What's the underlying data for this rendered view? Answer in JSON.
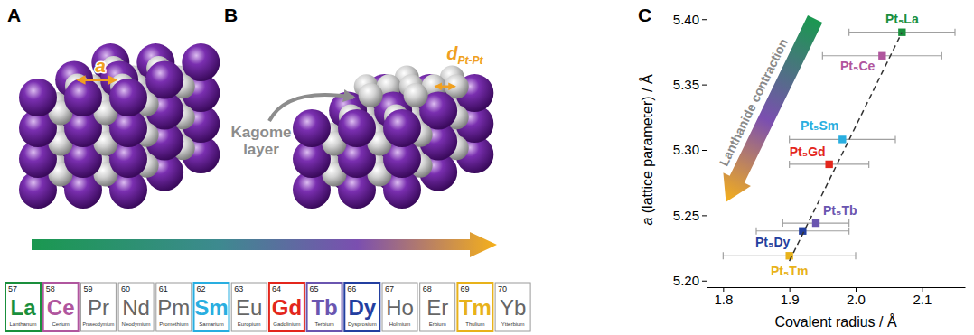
{
  "chart_data": {
    "type": "scatter",
    "x_label": "Covalent radius / Å",
    "y_label": "a (lattice parameter) / Å",
    "annotation": "Lanthanide contraction",
    "xlim": [
      1.775,
      2.165
    ],
    "xticks": [
      1.8,
      1.9,
      {
        "value": 2.0,
        "label": "2.0"
      },
      2.1
    ],
    "ylim": [
      5.195,
      5.405
    ],
    "yticks": [
      {
        "value": 5.2,
        "label": "5.20"
      },
      5.25,
      {
        "value": 5.3,
        "label": "5.30"
      },
      5.35,
      {
        "value": 5.4,
        "label": "5.40"
      }
    ],
    "grid": false,
    "series": [
      {
        "type": "scatter",
        "marker": "square",
        "labels": [
          "Pt₅La",
          "Pt₅Ce",
          "Pt₅Sm",
          "Pt₅Gd",
          "Pt₅Tb",
          "Pt₅Dy",
          "Pt₅Tm"
        ],
        "x": [
          2.07,
          2.04,
          1.98,
          1.96,
          1.94,
          1.92,
          1.9
        ],
        "values": [
          5.39,
          5.372,
          5.308,
          5.289,
          5.244,
          5.238,
          5.219
        ],
        "x_errors": [
          0.08,
          0.09,
          0.08,
          0.06,
          0.05,
          0.07,
          0.1
        ],
        "colors": [
          "#1a8f3c",
          "#b0569e",
          "#29aee0",
          "#e3261c",
          "#6a55b0",
          "#233fa0",
          "#e8b21a"
        ]
      },
      {
        "type": "line",
        "line_style": "dashed",
        "color": "#333333",
        "x": [
          1.9,
          2.07
        ],
        "values": [
          5.215,
          5.39
        ]
      }
    ]
  },
  "figure": {
    "panels": [
      "A",
      "B",
      "C"
    ],
    "lattice_label": "a",
    "distance_label": {
      "symbol": "d",
      "subscript": "Pt-Pt"
    },
    "kagome_label": "Kagome layer",
    "elements": [
      {
        "number": 57,
        "symbol": "La",
        "name": "Lanthanum",
        "color": "#1a8f3c"
      },
      {
        "number": 58,
        "symbol": "Ce",
        "name": "Cerium",
        "color": "#b0569e"
      },
      {
        "number": 59,
        "symbol": "Pr",
        "name": "Praseodymium"
      },
      {
        "number": 60,
        "symbol": "Nd",
        "name": "Neodymium"
      },
      {
        "number": 61,
        "symbol": "Pm",
        "name": "Promethium"
      },
      {
        "number": 62,
        "symbol": "Sm",
        "name": "Samarium",
        "color": "#29aee0"
      },
      {
        "number": 63,
        "symbol": "Eu",
        "name": "Europium"
      },
      {
        "number": 64,
        "symbol": "Gd",
        "name": "Gadolinium",
        "color": "#e3261c"
      },
      {
        "number": 65,
        "symbol": "Tb",
        "name": "Terbium",
        "color": "#6a55b0"
      },
      {
        "number": 66,
        "symbol": "Dy",
        "name": "Dysprosium",
        "color": "#233fa0"
      },
      {
        "number": 67,
        "symbol": "Ho",
        "name": "Holmium"
      },
      {
        "number": 68,
        "symbol": "Er",
        "name": "Erbium"
      },
      {
        "number": 69,
        "symbol": "Tm",
        "name": "Thulium",
        "color": "#e8b21a"
      },
      {
        "number": 70,
        "symbol": "Yb",
        "name": "Ytterbium"
      }
    ]
  }
}
